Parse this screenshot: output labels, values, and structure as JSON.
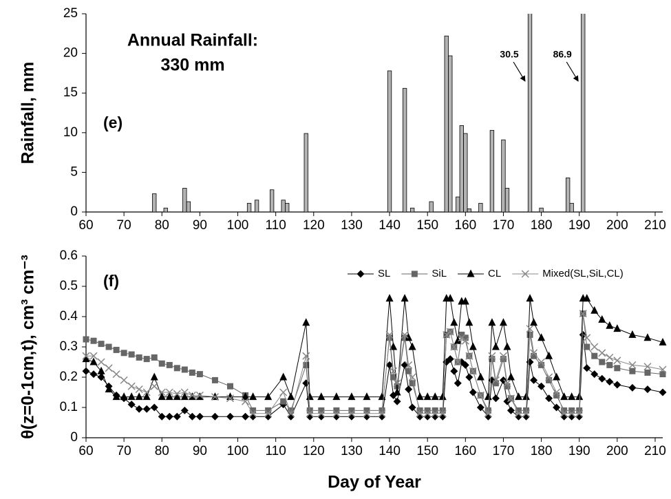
{
  "chart_data": [
    {
      "type": "bar",
      "panel_label": "(e)",
      "annotation_lines": [
        "Annual Rainfall:",
        "330 mm"
      ],
      "ylabel": "Rainfall, mm",
      "color": "#b3b3b3",
      "x": [
        78,
        81,
        86,
        87,
        103,
        105,
        109,
        112,
        113,
        118,
        140,
        144,
        146,
        151,
        155,
        156,
        158,
        159,
        160,
        161,
        164,
        167,
        170,
        171,
        177,
        180,
        187,
        188,
        191
      ],
      "values": [
        2.3,
        0.5,
        3.0,
        1.3,
        1.1,
        1.5,
        2.8,
        1.5,
        1.1,
        9.9,
        17.8,
        15.6,
        0.5,
        1.3,
        22.2,
        19.7,
        1.9,
        10.9,
        9.9,
        0.4,
        1.1,
        10.3,
        9.1,
        3.0,
        30.5,
        0.5,
        4.3,
        1.1,
        86.9
      ],
      "value_labels": [
        null,
        null,
        null,
        null,
        null,
        null,
        null,
        null,
        null,
        null,
        null,
        null,
        null,
        null,
        null,
        null,
        null,
        null,
        null,
        null,
        null,
        null,
        null,
        null,
        "30.5",
        null,
        null,
        null,
        "86.9"
      ],
      "xlim": [
        60,
        212
      ],
      "xticks": [
        60,
        70,
        80,
        90,
        100,
        110,
        120,
        130,
        140,
        150,
        160,
        170,
        180,
        190,
        200,
        210
      ],
      "ylim": [
        0,
        25
      ],
      "yticks": [
        0,
        5,
        10,
        15,
        20,
        25
      ]
    },
    {
      "type": "line",
      "panel_label": "(f)",
      "ylabel": "θ(z=0-1cm,t), cm³ cm⁻³",
      "xlabel": "Day of Year",
      "legend": "upper right",
      "x": [
        60,
        62,
        64,
        66,
        68,
        70,
        72,
        74,
        76,
        78,
        80,
        82,
        84,
        86,
        88,
        90,
        94,
        98,
        102,
        104,
        108,
        112,
        114,
        118,
        119,
        122,
        126,
        130,
        134,
        138,
        140,
        141,
        142,
        144,
        145,
        146,
        148,
        150,
        152,
        154,
        155,
        156,
        157,
        158,
        159,
        160,
        161,
        162,
        164,
        166,
        167,
        168,
        170,
        171,
        172,
        174,
        176,
        177,
        178,
        180,
        182,
        184,
        186,
        188,
        190,
        191,
        192,
        194,
        196,
        198,
        200,
        204,
        208,
        212
      ],
      "series": [
        {
          "name": "SL",
          "color": "#000000",
          "marker": "diamond",
          "values": [
            0.22,
            0.21,
            0.2,
            0.17,
            0.14,
            0.13,
            0.11,
            0.095,
            0.095,
            0.1,
            0.07,
            0.07,
            0.07,
            0.09,
            0.07,
            0.07,
            0.07,
            0.07,
            0.07,
            0.07,
            0.07,
            0.11,
            0.07,
            0.18,
            0.07,
            0.07,
            0.07,
            0.07,
            0.07,
            0.07,
            0.24,
            0.14,
            0.12,
            0.24,
            0.16,
            0.1,
            0.07,
            0.07,
            0.07,
            0.07,
            0.25,
            0.26,
            0.22,
            0.18,
            0.25,
            0.24,
            0.2,
            0.15,
            0.1,
            0.07,
            0.19,
            0.13,
            0.19,
            0.12,
            0.09,
            0.07,
            0.07,
            0.25,
            0.19,
            0.17,
            0.13,
            0.1,
            0.07,
            0.07,
            0.07,
            0.34,
            0.23,
            0.21,
            0.195,
            0.185,
            0.175,
            0.165,
            0.16,
            0.15
          ]
        },
        {
          "name": "SiL",
          "color": "#666666",
          "marker": "square",
          "values": [
            0.325,
            0.32,
            0.31,
            0.3,
            0.29,
            0.28,
            0.275,
            0.265,
            0.26,
            0.265,
            0.245,
            0.24,
            0.23,
            0.225,
            0.215,
            0.21,
            0.19,
            0.17,
            0.14,
            0.09,
            0.09,
            0.12,
            0.09,
            0.24,
            0.09,
            0.09,
            0.09,
            0.09,
            0.09,
            0.09,
            0.33,
            0.2,
            0.17,
            0.33,
            0.22,
            0.18,
            0.09,
            0.09,
            0.09,
            0.09,
            0.34,
            0.35,
            0.3,
            0.25,
            0.34,
            0.33,
            0.27,
            0.22,
            0.14,
            0.09,
            0.26,
            0.18,
            0.26,
            0.17,
            0.13,
            0.09,
            0.09,
            0.34,
            0.27,
            0.24,
            0.19,
            0.14,
            0.09,
            0.09,
            0.09,
            0.41,
            0.3,
            0.27,
            0.25,
            0.24,
            0.23,
            0.22,
            0.215,
            0.21
          ]
        },
        {
          "name": "CL",
          "color": "#000000",
          "marker": "triangle",
          "values": [
            0.26,
            0.25,
            0.22,
            0.16,
            0.135,
            0.135,
            0.135,
            0.135,
            0.135,
            0.2,
            0.135,
            0.135,
            0.135,
            0.135,
            0.135,
            0.135,
            0.135,
            0.135,
            0.135,
            0.135,
            0.135,
            0.2,
            0.135,
            0.38,
            0.135,
            0.135,
            0.135,
            0.135,
            0.135,
            0.135,
            0.46,
            0.3,
            0.15,
            0.46,
            0.33,
            0.3,
            0.135,
            0.135,
            0.135,
            0.135,
            0.46,
            0.46,
            0.38,
            0.32,
            0.45,
            0.45,
            0.38,
            0.3,
            0.2,
            0.135,
            0.38,
            0.3,
            0.38,
            0.3,
            0.2,
            0.135,
            0.135,
            0.46,
            0.38,
            0.33,
            0.27,
            0.2,
            0.135,
            0.135,
            0.135,
            0.46,
            0.46,
            0.42,
            0.39,
            0.37,
            0.36,
            0.34,
            0.33,
            0.315
          ]
        },
        {
          "name": "Mixed(SL,SiL,CL)",
          "color": "#888888",
          "marker": "x",
          "values": [
            0.27,
            0.27,
            0.25,
            0.23,
            0.21,
            0.19,
            0.17,
            0.16,
            0.15,
            0.17,
            0.15,
            0.15,
            0.145,
            0.15,
            0.14,
            0.14,
            0.135,
            0.13,
            0.12,
            0.08,
            0.08,
            0.15,
            0.08,
            0.27,
            0.08,
            0.08,
            0.08,
            0.08,
            0.08,
            0.08,
            0.34,
            0.22,
            0.18,
            0.34,
            0.24,
            0.2,
            0.08,
            0.08,
            0.08,
            0.08,
            0.34,
            0.35,
            0.3,
            0.25,
            0.33,
            0.32,
            0.27,
            0.22,
            0.14,
            0.08,
            0.27,
            0.19,
            0.27,
            0.18,
            0.13,
            0.08,
            0.08,
            0.36,
            0.28,
            0.25,
            0.2,
            0.15,
            0.08,
            0.08,
            0.08,
            0.41,
            0.33,
            0.3,
            0.28,
            0.265,
            0.255,
            0.24,
            0.235,
            0.225
          ]
        }
      ],
      "xlim": [
        60,
        212
      ],
      "xticks": [
        60,
        70,
        80,
        90,
        100,
        110,
        120,
        130,
        140,
        150,
        160,
        170,
        180,
        190,
        200,
        210
      ],
      "ylim": [
        0,
        0.6
      ],
      "yticks": [
        0,
        0.1,
        0.2,
        0.3,
        0.4,
        0.5,
        0.6
      ]
    }
  ]
}
